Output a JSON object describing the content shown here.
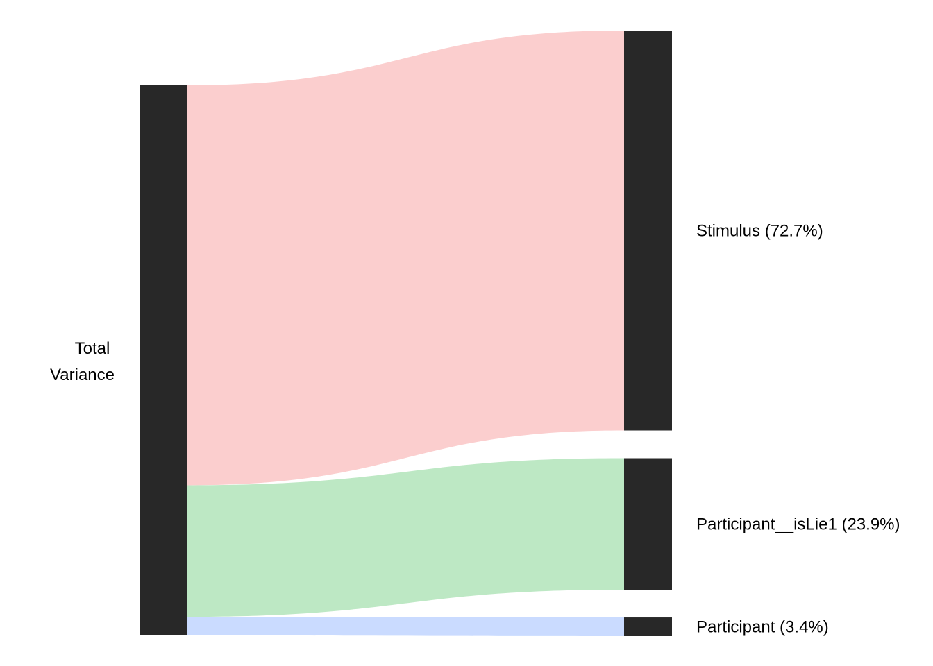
{
  "chart_data": {
    "type": "sankey",
    "source": {
      "label_lines": [
        "Total",
        "Variance"
      ],
      "value": 100
    },
    "targets": [
      {
        "label": "Stimulus (72.7%)",
        "value": 72.7,
        "color": "#fbcece"
      },
      {
        "label": "Participant__isLie1 (23.9%)",
        "value": 23.9,
        "color": "#bde8c4"
      },
      {
        "label": "Participant (3.4%)",
        "value": 3.4,
        "color": "#cadbff"
      }
    ],
    "node_color": "#282828"
  }
}
